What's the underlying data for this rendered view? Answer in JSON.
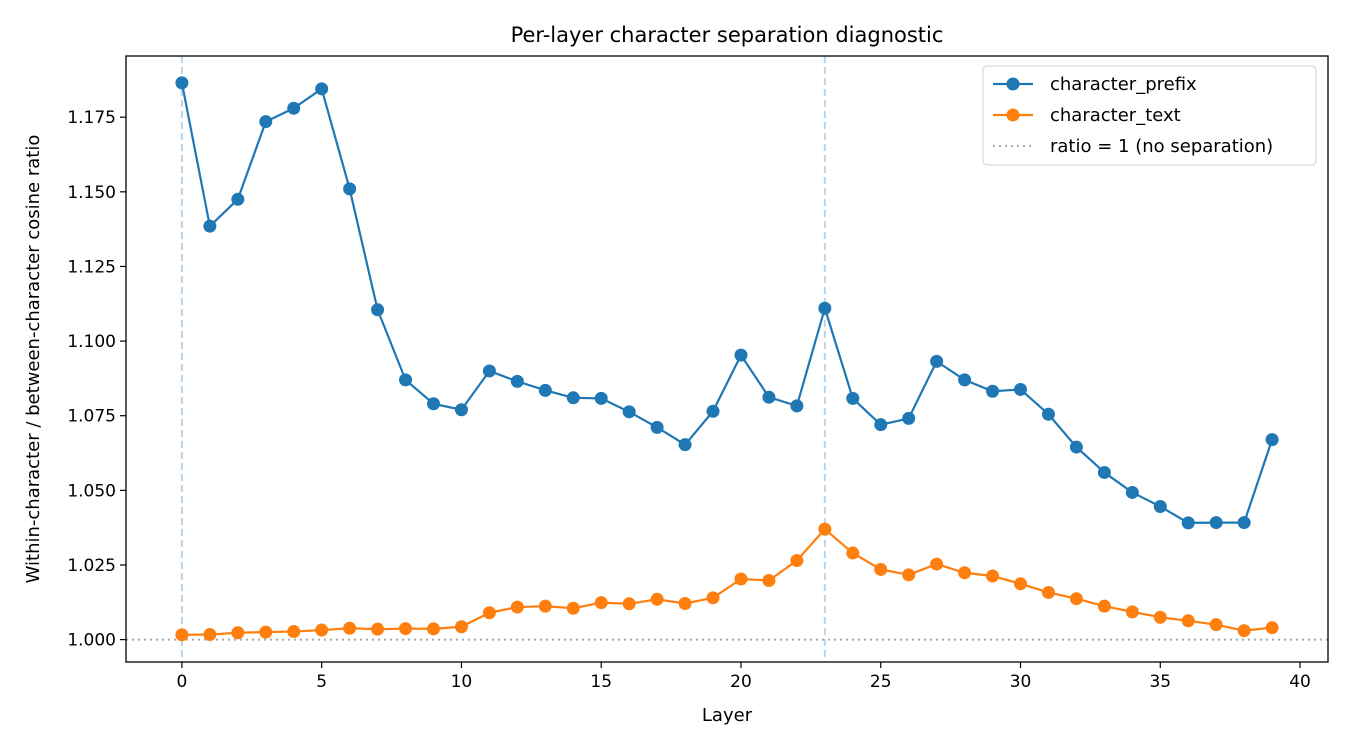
{
  "chart_data": {
    "type": "line",
    "title": "Per-layer character separation diagnostic",
    "xlabel": "Layer",
    "ylabel": "Within-character / between-character cosine ratio",
    "xlim": [
      -2,
      41
    ],
    "ylim": [
      0.9925,
      1.1955
    ],
    "xticks": [
      0,
      5,
      10,
      15,
      20,
      25,
      30,
      35,
      40
    ],
    "yticks": [
      1.0,
      1.025,
      1.05,
      1.075,
      1.1,
      1.125,
      1.15,
      1.175
    ],
    "ytick_labels": [
      "1.000",
      "1.025",
      "1.050",
      "1.075",
      "1.100",
      "1.125",
      "1.150",
      "1.175"
    ],
    "legend_position": "top-right",
    "grid": false,
    "x": [
      0,
      1,
      2,
      3,
      4,
      5,
      6,
      7,
      8,
      9,
      10,
      11,
      12,
      13,
      14,
      15,
      16,
      17,
      18,
      19,
      20,
      21,
      22,
      23,
      24,
      25,
      26,
      27,
      28,
      29,
      30,
      31,
      32,
      33,
      34,
      35,
      36,
      37,
      38,
      39
    ],
    "series": [
      {
        "name": "character_prefix",
        "color": "#1f77b4",
        "values": [
          1.1865,
          1.1385,
          1.1475,
          1.1735,
          1.178,
          1.1845,
          1.151,
          1.1105,
          1.087,
          1.079,
          1.077,
          1.09,
          1.0865,
          1.0835,
          1.081,
          1.0808,
          1.0763,
          1.0711,
          1.0653,
          1.0765,
          1.0953,
          1.0812,
          1.0783,
          1.111,
          1.0808,
          1.072,
          1.0741,
          1.0932,
          1.087,
          1.0832,
          1.0838,
          1.0755,
          1.0645,
          1.056,
          1.0493,
          1.0446,
          1.0391,
          1.0392,
          1.0392,
          1.067
        ]
      },
      {
        "name": "character_text",
        "color": "#ff7f0e",
        "values": [
          1.0016,
          1.0017,
          1.0023,
          1.0025,
          1.0027,
          1.0032,
          1.0038,
          1.0035,
          1.0037,
          1.0036,
          1.0043,
          1.009,
          1.0109,
          1.0112,
          1.0105,
          1.0124,
          1.012,
          1.0135,
          1.0121,
          1.014,
          1.0203,
          1.0198,
          1.0265,
          1.037,
          1.029,
          1.0235,
          1.0217,
          1.0253,
          1.0224,
          1.0213,
          1.0187,
          1.0158,
          1.0137,
          1.0112,
          1.0093,
          1.0075,
          1.0063,
          1.005,
          1.003,
          1.004
        ]
      }
    ],
    "reference_line": {
      "name": "ratio = 1 (no separation)",
      "y": 1.0,
      "color": "#aaaaaa"
    },
    "vertical_markers": [
      0,
      23
    ],
    "vertical_marker_color": "#b8d4ea"
  }
}
